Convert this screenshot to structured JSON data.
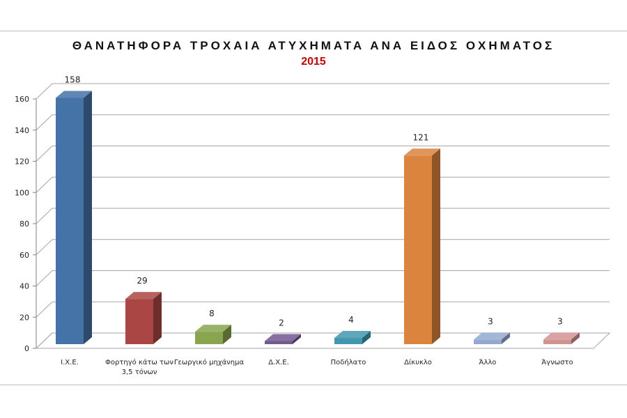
{
  "chart_data": {
    "type": "bar",
    "title": "ΘΑΝΑΤΗΦΟΡΑ ΤΡΟΧΑΙΑ ΑΤΥΧΗΜΑΤΑ ΑΝΑ ΕΙΔΟΣ ΟΧΗΜΑΤΟΣ",
    "subtitle": "2015",
    "categories": [
      [
        "Ι.Χ.Ε."
      ],
      [
        "Φορτηγό κάτω των",
        "3,5 τόνων"
      ],
      [
        "Γεωργικό μηχάνημα"
      ],
      [
        "Δ.Χ.Ε."
      ],
      [
        "Ποδήλατο"
      ],
      [
        "Δίκυκλο"
      ],
      [
        "Άλλο"
      ],
      [
        "Άγνωστο"
      ]
    ],
    "values": [
      158,
      29,
      8,
      2,
      4,
      121,
      3,
      3
    ],
    "data_labels": [
      "158",
      "29",
      "8",
      "2",
      "4",
      "121",
      "3",
      "3"
    ],
    "ylim": [
      0,
      160
    ],
    "yticks": [
      0,
      20,
      40,
      60,
      80,
      100,
      120,
      140,
      160
    ],
    "grid": true,
    "legend": "none",
    "bar_colors": [
      "#4572a7",
      "#aa4643",
      "#89a54e",
      "#71588f",
      "#4198af",
      "#db843d",
      "#93a9cf",
      "#d19392"
    ]
  }
}
